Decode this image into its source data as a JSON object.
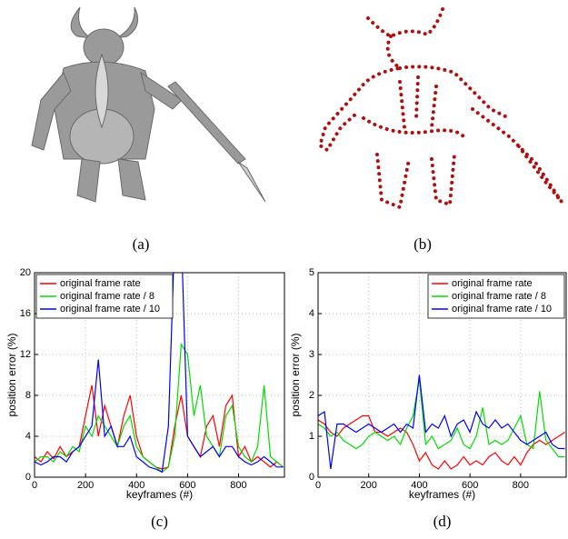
{
  "figure": {
    "captions": [
      "(a)",
      "(b)"
    ]
  },
  "chart_data": [
    {
      "type": "line",
      "caption": "(c)",
      "xlabel": "keyframes (#)",
      "ylabel": "position error (%)",
      "xlim": [
        0,
        980
      ],
      "xticks": [
        0,
        200,
        400,
        600,
        800
      ],
      "ylim": [
        0,
        20
      ],
      "yticks": [
        0,
        4,
        8,
        12,
        16,
        20
      ],
      "grid": true,
      "legend": "upper left",
      "x": [
        0,
        25,
        50,
        75,
        100,
        125,
        150,
        175,
        200,
        225,
        250,
        275,
        300,
        325,
        350,
        375,
        400,
        425,
        450,
        475,
        500,
        525,
        550,
        575,
        600,
        625,
        650,
        675,
        700,
        725,
        750,
        775,
        800,
        825,
        850,
        875,
        900,
        925,
        950,
        975
      ],
      "series": [
        {
          "name": "original frame rate",
          "color": "#ff0000",
          "values": [
            2,
            1.5,
            2.5,
            1.8,
            3,
            2,
            2.5,
            3,
            6,
            9,
            4,
            7,
            5,
            3,
            6,
            8,
            4,
            2,
            1.5,
            1,
            0.8,
            1,
            5,
            8,
            4,
            3,
            2,
            5,
            6,
            3,
            7,
            8,
            2,
            3,
            1.5,
            2,
            1.5,
            1,
            1.5,
            1
          ]
        },
        {
          "name": "original frame rate / 8",
          "color": "#00dd00",
          "values": [
            1.5,
            2,
            2,
            1.5,
            2.5,
            2,
            3,
            2.5,
            5,
            4,
            6,
            5,
            4,
            3,
            5,
            6,
            3,
            2,
            1.5,
            1,
            0.5,
            1,
            4,
            13,
            12,
            6,
            9,
            4,
            3,
            2,
            6,
            7,
            3,
            2,
            1.5,
            3,
            9,
            2,
            1.5,
            1
          ]
        },
        {
          "name": "original frame rate / 10",
          "color": "#0000ff",
          "values": [
            1.5,
            1.2,
            1.5,
            2,
            2,
            1.5,
            2.5,
            3,
            4,
            5,
            11.5,
            4,
            5,
            3,
            3,
            4,
            2,
            1.5,
            1,
            0.8,
            0.5,
            5,
            24,
            24,
            4,
            3,
            2,
            2.5,
            3,
            2,
            3,
            3,
            2,
            1.5,
            1.2,
            1.5,
            2,
            1.5,
            1,
            1
          ]
        }
      ]
    },
    {
      "type": "line",
      "caption": "(d)",
      "xlabel": "keyframes (#)",
      "ylabel": "position error (%)",
      "xlim": [
        0,
        980
      ],
      "xticks": [
        0,
        200,
        400,
        600,
        800
      ],
      "ylim": [
        0,
        5
      ],
      "yticks": [
        0,
        1,
        2,
        3,
        4,
        5
      ],
      "grid": true,
      "legend": "upper right",
      "x": [
        0,
        25,
        50,
        75,
        100,
        125,
        150,
        175,
        200,
        225,
        250,
        275,
        300,
        325,
        350,
        375,
        400,
        425,
        450,
        475,
        500,
        525,
        550,
        575,
        600,
        625,
        650,
        675,
        700,
        725,
        750,
        775,
        800,
        825,
        850,
        875,
        900,
        925,
        950,
        975
      ],
      "series": [
        {
          "name": "original frame rate",
          "color": "#ff0000",
          "values": [
            1.4,
            1.3,
            1.1,
            1,
            1.2,
            1.3,
            1.4,
            1.5,
            1.5,
            1.1,
            1.1,
            1,
            1.1,
            1.2,
            1.1,
            0.8,
            0.4,
            0.6,
            0.3,
            0.2,
            0.4,
            0.2,
            0.3,
            0.5,
            0.3,
            0.4,
            0.3,
            0.5,
            0.6,
            0.4,
            0.3,
            0.5,
            0.3,
            0.6,
            0.8,
            0.9,
            0.8,
            0.9,
            1,
            1.1
          ]
        },
        {
          "name": "original frame rate / 8",
          "color": "#00dd00",
          "values": [
            1.3,
            1.2,
            1,
            1.1,
            0.9,
            0.8,
            0.7,
            0.8,
            1,
            1.1,
            1,
            0.9,
            1,
            0.8,
            1.2,
            1.5,
            2.4,
            0.8,
            1,
            0.7,
            0.8,
            0.9,
            1.2,
            0.8,
            0.7,
            1,
            1.7,
            0.8,
            0.9,
            0.8,
            0.9,
            1.2,
            1.5,
            0.8,
            0.7,
            2.1,
            0.9,
            0.7,
            0.5,
            0.5
          ]
        },
        {
          "name": "original frame rate / 10",
          "color": "#0000ff",
          "values": [
            1.5,
            1.6,
            0.2,
            1.3,
            1.3,
            1.2,
            1.1,
            1.2,
            1.3,
            1.2,
            1.1,
            1.2,
            1.3,
            1.1,
            1.3,
            1.2,
            2.5,
            1.1,
            1.3,
            1.2,
            1.5,
            1,
            1.3,
            1.4,
            1.1,
            1.6,
            1.3,
            1.2,
            1.4,
            1.2,
            1.3,
            1.1,
            0.9,
            0.8,
            0.9,
            1,
            1.1,
            0.8,
            0.7,
            0.7
          ]
        }
      ]
    }
  ]
}
